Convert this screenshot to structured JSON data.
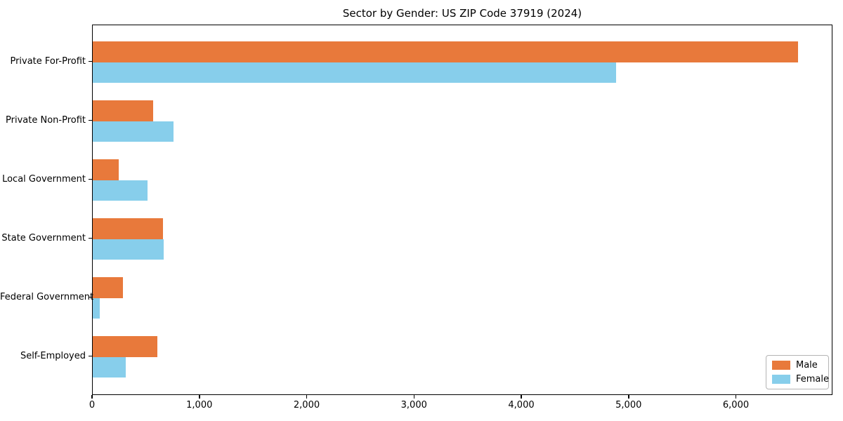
{
  "chart_data": {
    "type": "bar",
    "orientation": "horizontal",
    "title": "Sector by Gender: US ZIP Code 37919 (2024)",
    "categories": [
      "Private For-Profit",
      "Private Non-Profit",
      "Local Government",
      "State Government",
      "Federal Government",
      "Self-Employed"
    ],
    "series": [
      {
        "name": "Male",
        "color": "#e8793b",
        "values": [
          6570,
          560,
          245,
          655,
          280,
          605
        ]
      },
      {
        "name": "Female",
        "color": "#87ceeb",
        "values": [
          4880,
          750,
          510,
          660,
          65,
          310
        ]
      }
    ],
    "xlim": [
      0,
      6900
    ],
    "xticks": [
      0,
      1000,
      2000,
      3000,
      4000,
      5000,
      6000
    ],
    "xtick_labels": [
      "0",
      "1,000",
      "2,000",
      "3,000",
      "4,000",
      "5,000",
      "6,000"
    ],
    "xlabel": "",
    "ylabel": "",
    "grid": false,
    "legend": {
      "position": "lower right",
      "entries": [
        "Male",
        "Female"
      ]
    }
  },
  "frame": {
    "background": "#ffffff",
    "spine_color": "#000000"
  }
}
